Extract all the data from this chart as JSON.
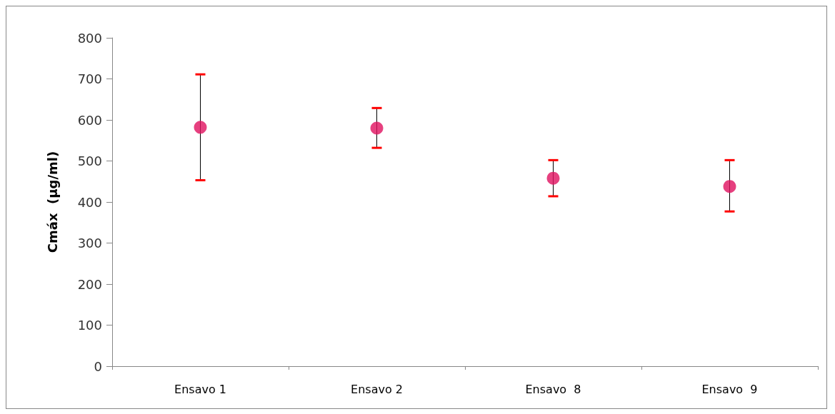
{
  "chart_data": {
    "type": "scatter",
    "ylabel": "Cmáx  (µg/ml)",
    "categories": [
      "Ensavo 1",
      "Ensavo 2",
      "Ensavo  8",
      "Ensavo  9"
    ],
    "values": [
      582,
      580,
      458,
      438
    ],
    "errors": [
      [
        453,
        711
      ],
      [
        532,
        629
      ],
      [
        414,
        502
      ],
      [
        377,
        502
      ]
    ],
    "color": "#e0105f",
    "marker": "circle",
    "ylim": [
      0,
      800
    ],
    "yticks": [
      0,
      100,
      200,
      300,
      400,
      500,
      600,
      700,
      800
    ],
    "grid": false
  }
}
